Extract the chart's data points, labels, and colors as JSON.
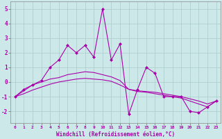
{
  "xlabel": "Windchill (Refroidissement éolien,°C)",
  "background_color": "#cce8e8",
  "grid_color": "#aacccc",
  "line_color": "#aa00aa",
  "x_values": [
    0,
    1,
    2,
    3,
    4,
    5,
    6,
    7,
    8,
    9,
    10,
    11,
    12,
    13,
    14,
    15,
    16,
    17,
    18,
    19,
    20,
    21,
    22,
    23
  ],
  "series1": [
    -1.0,
    -0.5,
    -0.2,
    0.1,
    1.0,
    1.5,
    2.5,
    2.0,
    2.5,
    1.7,
    5.0,
    1.5,
    2.6,
    -2.2,
    -0.5,
    1.0,
    0.6,
    -1.0,
    -1.0,
    -1.0,
    -2.0,
    -2.1,
    -1.7,
    -1.3
  ],
  "series2": [
    -1.0,
    -0.6,
    -0.2,
    0.0,
    0.2,
    0.3,
    0.5,
    0.6,
    0.7,
    0.65,
    0.5,
    0.35,
    0.1,
    -0.5,
    -0.6,
    -0.65,
    -0.7,
    -0.8,
    -0.9,
    -1.0,
    -1.15,
    -1.3,
    -1.5,
    -1.3
  ],
  "series3": [
    -1.0,
    -0.8,
    -0.55,
    -0.35,
    -0.15,
    0.0,
    0.1,
    0.2,
    0.25,
    0.2,
    0.15,
    0.05,
    -0.2,
    -0.5,
    -0.65,
    -0.7,
    -0.8,
    -0.9,
    -1.0,
    -1.1,
    -1.3,
    -1.5,
    -1.7,
    -1.3
  ],
  "ylim": [
    -2.8,
    5.5
  ],
  "xlim": [
    -0.5,
    23.5
  ],
  "yticks": [
    -2,
    -1,
    0,
    1,
    2,
    3,
    4,
    5
  ],
  "xticks": [
    0,
    1,
    2,
    3,
    4,
    5,
    6,
    7,
    8,
    9,
    10,
    11,
    12,
    13,
    14,
    15,
    16,
    17,
    18,
    19,
    20,
    21,
    22,
    23
  ]
}
